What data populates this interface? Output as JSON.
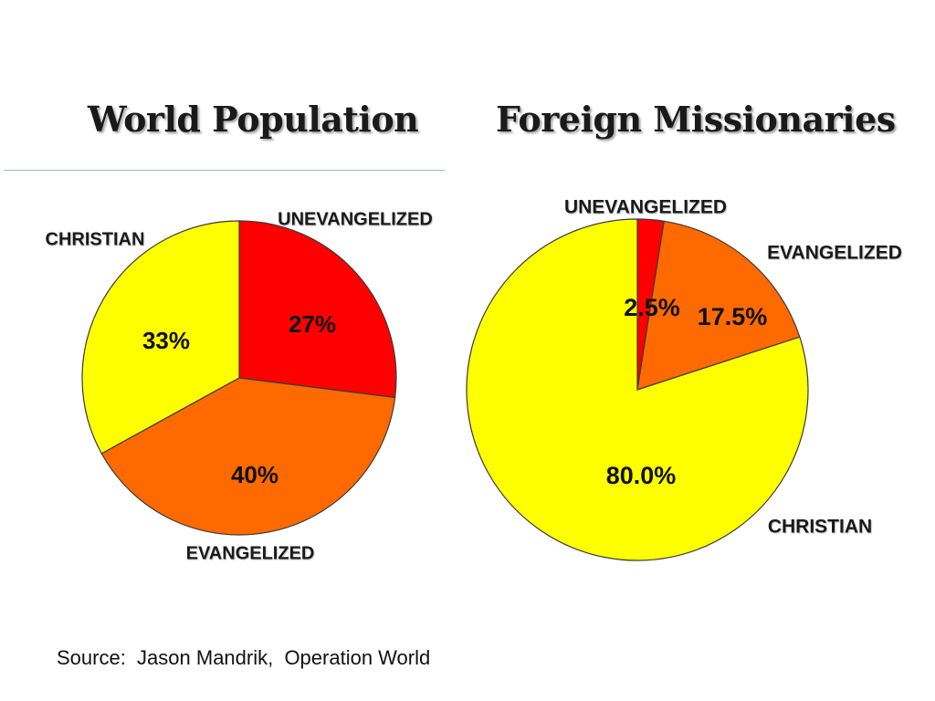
{
  "slide": {
    "source": "Source:  Jason Mandrik,  Operation World"
  },
  "chart_data": [
    {
      "type": "pie",
      "title": "World Population",
      "categories": [
        "UNEVANGELIZED",
        "EVANGELIZED",
        "CHRISTIAN"
      ],
      "values": [
        27,
        40,
        33
      ],
      "labels": [
        "27%",
        "40%",
        "33%"
      ],
      "colors": [
        "#ff0000",
        "#ff6a00",
        "#ffff00"
      ],
      "start_angle": "12 o'clock, clockwise"
    },
    {
      "type": "pie",
      "title": "Foreign Missionaries",
      "categories": [
        "UNEVANGELIZED",
        "EVANGELIZED",
        "CHRISTIAN"
      ],
      "values": [
        2.5,
        17.5,
        80.0
      ],
      "labels": [
        "2.5%",
        "17.5%",
        "80.0%"
      ],
      "colors": [
        "#ff0000",
        "#ff6a00",
        "#ffff00"
      ],
      "start_angle": "12 o'clock, clockwise"
    }
  ]
}
